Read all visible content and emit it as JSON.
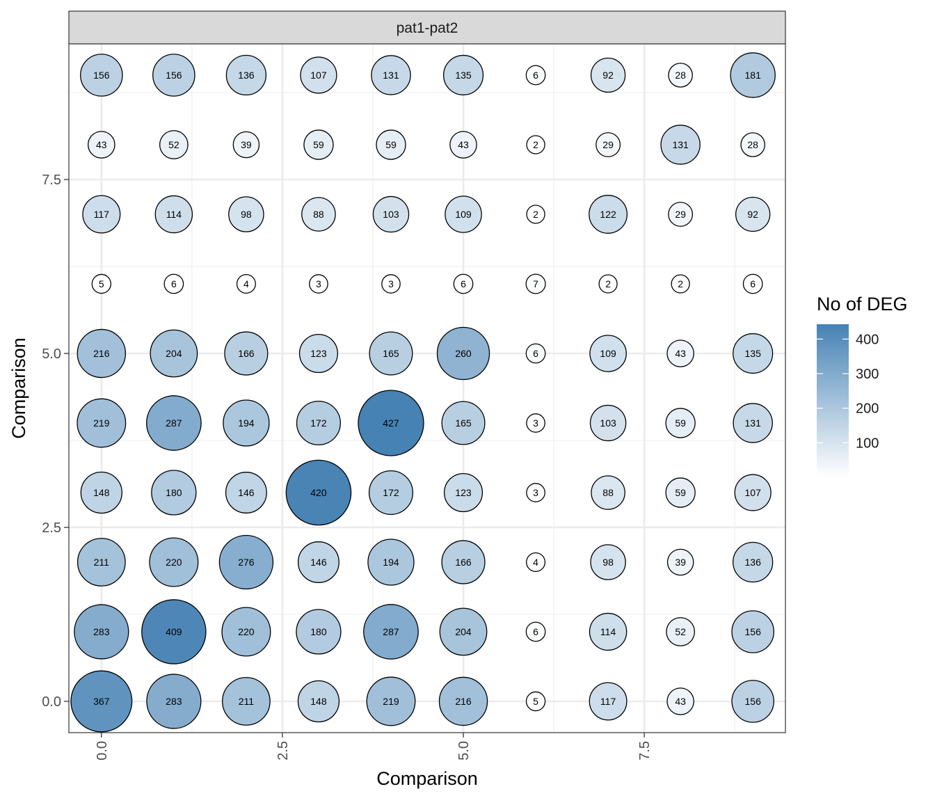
{
  "chart_data": {
    "type": "scatter",
    "title": "",
    "facet_label": "pat1-pat2",
    "xlabel": "Comparison",
    "ylabel": "Comparison",
    "xlim": [
      -0.45,
      9.45
    ],
    "ylim": [
      -0.45,
      9.45
    ],
    "x_ticks": [
      "0.0",
      "2.5",
      "5.0",
      "7.5"
    ],
    "x_tick_values": [
      0,
      2.5,
      5,
      7.5
    ],
    "y_ticks": [
      "0.0",
      "2.5",
      "5.0",
      "7.5"
    ],
    "y_tick_values": [
      0,
      2.5,
      5,
      7.5
    ],
    "grid": true,
    "legend": {
      "title": "No of DEG",
      "placement": "right",
      "ticks": [
        "100",
        "200",
        "300",
        "400"
      ],
      "tick_values": [
        100,
        200,
        300,
        400
      ],
      "range": [
        2,
        427
      ],
      "low_color": "#ffffff",
      "high_color": "#4682b4"
    },
    "matrix": [
      [
        367,
        283,
        211,
        148,
        219,
        216,
        5,
        117,
        43,
        156
      ],
      [
        283,
        409,
        220,
        180,
        287,
        204,
        6,
        114,
        52,
        156
      ],
      [
        211,
        220,
        276,
        146,
        194,
        166,
        4,
        98,
        39,
        136
      ],
      [
        148,
        180,
        146,
        420,
        172,
        123,
        3,
        88,
        59,
        107
      ],
      [
        219,
        287,
        194,
        172,
        427,
        165,
        3,
        103,
        59,
        131
      ],
      [
        216,
        204,
        166,
        123,
        165,
        260,
        6,
        109,
        43,
        135
      ],
      [
        5,
        6,
        4,
        3,
        3,
        6,
        7,
        2,
        2,
        6
      ],
      [
        117,
        114,
        98,
        88,
        103,
        109,
        2,
        122,
        29,
        92
      ],
      [
        43,
        52,
        39,
        59,
        59,
        43,
        2,
        29,
        131,
        28
      ],
      [
        156,
        156,
        136,
        107,
        131,
        135,
        6,
        92,
        28,
        181
      ]
    ]
  }
}
